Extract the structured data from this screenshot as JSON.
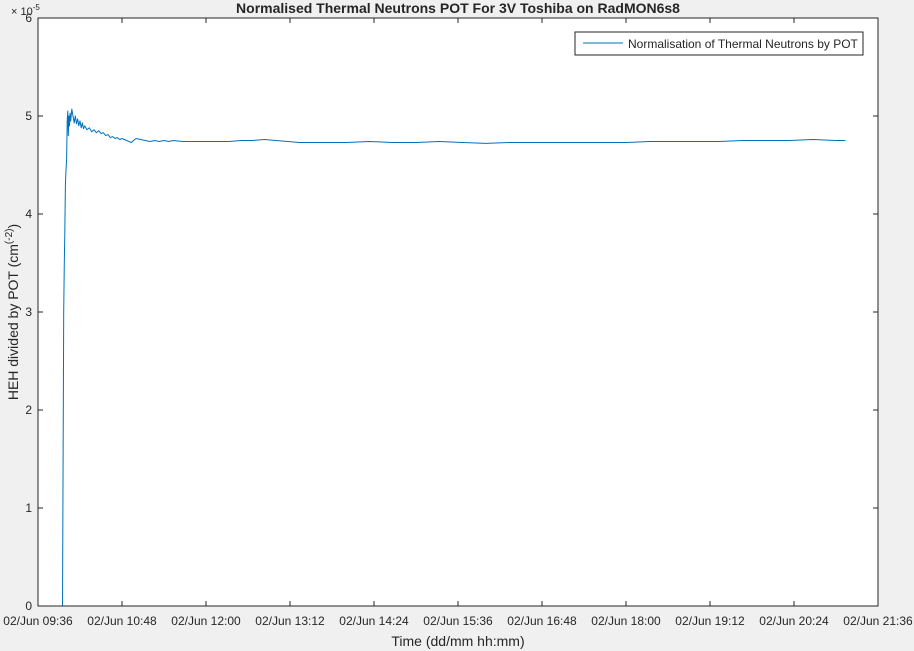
{
  "figure": {
    "background": "#f0f0f0",
    "axes_background": "#ffffff",
    "axis_color": "#262626",
    "line_color": "#0072bd"
  },
  "chart_data": {
    "type": "line",
    "title": "Normalised Thermal Neutrons POT For 3V Toshiba on RadMON6s8",
    "xlabel": "Time (dd/mm hh:mm)",
    "ylabel_parts": [
      "HEH divided by POT (cm",
      "(-2)",
      ")"
    ],
    "y_exponent": "× 10",
    "y_exponent_power": "-5",
    "xlim_minutes": [
      576,
      1296
    ],
    "ylim": [
      0,
      6
    ],
    "x_ticks": [
      {
        "minutes": 576,
        "label": "02/Jun 09:36"
      },
      {
        "minutes": 648,
        "label": "02/Jun 10:48"
      },
      {
        "minutes": 720,
        "label": "02/Jun 12:00"
      },
      {
        "minutes": 792,
        "label": "02/Jun 13:12"
      },
      {
        "minutes": 864,
        "label": "02/Jun 14:24"
      },
      {
        "minutes": 936,
        "label": "02/Jun 15:36"
      },
      {
        "minutes": 1008,
        "label": "02/Jun 16:48"
      },
      {
        "minutes": 1080,
        "label": "02/Jun 18:00"
      },
      {
        "minutes": 1152,
        "label": "02/Jun 19:12"
      },
      {
        "minutes": 1224,
        "label": "02/Jun 20:24"
      },
      {
        "minutes": 1296,
        "label": "02/Jun 21:36"
      }
    ],
    "y_ticks": [
      {
        "value": 0,
        "label": "0"
      },
      {
        "value": 1,
        "label": "1"
      },
      {
        "value": 2,
        "label": "2"
      },
      {
        "value": 3,
        "label": "3"
      },
      {
        "value": 4,
        "label": "4"
      },
      {
        "value": 5,
        "label": "5"
      },
      {
        "value": 6,
        "label": "6"
      }
    ],
    "grid": false,
    "legend_position": "top-right",
    "series": [
      {
        "name": "Normalisation of Thermal Neutrons by POT",
        "color": "#0072bd",
        "x_minutes": [
          597.0,
          597.5,
          598.0,
          598.5,
          599.0,
          599.5,
          600.0,
          600.5,
          601.0,
          601.5,
          602.0,
          602.5,
          603.0,
          603.5,
          604.0,
          605.0,
          606.0,
          607.0,
          608.0,
          609.0,
          610.0,
          611.0,
          612.0,
          613.0,
          614.0,
          615.0,
          616.0,
          617.0,
          618.0,
          620.0,
          622.0,
          624.0,
          626.0,
          628.0,
          630.0,
          632.0,
          634.0,
          636.0,
          638.0,
          640.0,
          642.0,
          644.0,
          646.0,
          648.0,
          652.0,
          656.0,
          660.0,
          664.0,
          668.0,
          672.0,
          676.0,
          680.0,
          684.0,
          688.0,
          692.0,
          700.0,
          710.0,
          720.0,
          730.0,
          740.0,
          750.0,
          760.0,
          770.0,
          780.0,
          790.0,
          800.0,
          810.0,
          820.0,
          840.0,
          860.0,
          880.0,
          900.0,
          920.0,
          940.0,
          960.0,
          980.0,
          1000.0,
          1020.0,
          1040.0,
          1060.0,
          1080.0,
          1100.0,
          1120.0,
          1140.0,
          1160.0,
          1180.0,
          1200.0,
          1220.0,
          1240.0,
          1260.0,
          1268.0
        ],
        "values": [
          0.0,
          1.5,
          3.0,
          3.5,
          3.8,
          4.3,
          4.45,
          4.55,
          4.95,
          5.05,
          4.8,
          5.0,
          4.9,
          5.03,
          4.95,
          5.07,
          5.0,
          4.93,
          5.0,
          4.92,
          4.97,
          4.9,
          4.95,
          4.88,
          4.93,
          4.87,
          4.9,
          4.88,
          4.86,
          4.88,
          4.84,
          4.86,
          4.83,
          4.85,
          4.82,
          4.83,
          4.8,
          4.81,
          4.78,
          4.79,
          4.77,
          4.78,
          4.76,
          4.77,
          4.75,
          4.73,
          4.77,
          4.76,
          4.75,
          4.74,
          4.75,
          4.74,
          4.75,
          4.74,
          4.75,
          4.74,
          4.74,
          4.74,
          4.74,
          4.74,
          4.75,
          4.75,
          4.76,
          4.75,
          4.74,
          4.73,
          4.73,
          4.73,
          4.73,
          4.74,
          4.73,
          4.73,
          4.74,
          4.73,
          4.72,
          4.73,
          4.73,
          4.73,
          4.73,
          4.73,
          4.73,
          4.74,
          4.74,
          4.74,
          4.74,
          4.75,
          4.75,
          4.75,
          4.76,
          4.75,
          4.75
        ]
      }
    ]
  }
}
